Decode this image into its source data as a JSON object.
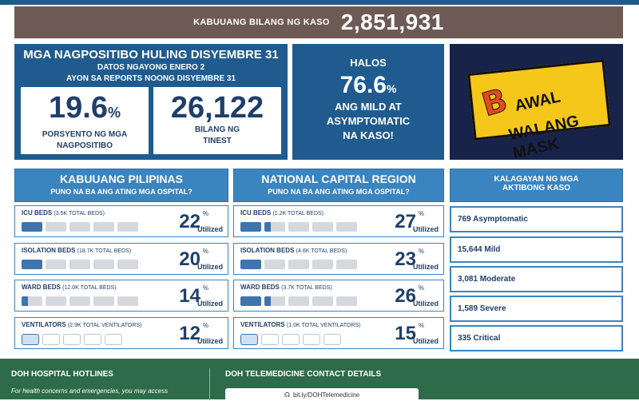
{
  "summary": {
    "total_label": "KABUUANG BILANG NG KASO",
    "total_value": "2,851,931"
  },
  "positivity": {
    "title": "MGA NAGPOSITIBO HULING DISYEMBRE 31",
    "sub1": "DATOS NGAYONG ENERO 2",
    "sub2": "AYON SA REPORTS NOONG DISYEMBRE 31",
    "rate_value": "19.6",
    "rate_unit": "%",
    "rate_caption1": "PORSYENTO NG MGA",
    "rate_caption2": "NAGPOSITIBO",
    "tested_value": "26,122",
    "tested_caption1": "BILANG NG",
    "tested_caption2": "TINEST"
  },
  "mild": {
    "line1": "HALOS",
    "value": "76.6",
    "unit": "%",
    "line2": "ANG MILD AT",
    "line3": "ASYMPTOMATIC",
    "line4": "NA KASO!"
  },
  "mask_banner": {
    "letter": "B",
    "line1": "AWAL",
    "line2": "WALANG MASK"
  },
  "philippines": {
    "title": "KABUUANG PILIPINAS",
    "subtitle": "PUNO NA BA ANG ATING MGA OSPITAL?",
    "beds": [
      {
        "label": "ICU BEDS",
        "note": "(3.5K TOTAL BEDS)",
        "value": "22",
        "unit": "%",
        "utilized": "Utilized",
        "utilization": 22
      },
      {
        "label": "ISOLATION BEDS",
        "note": "(18.7K TOTAL BEDS)",
        "value": "20",
        "unit": "%",
        "utilized": "Utilized",
        "utilization": 20
      },
      {
        "label": "WARD BEDS",
        "note": "(12.0K TOTAL BEDS)",
        "value": "14",
        "unit": "%",
        "utilized": "Utilized",
        "utilization": 14
      },
      {
        "label": "VENTILATORS",
        "note": "(2.9K TOTAL VENTILATORS)",
        "value": "12",
        "unit": "%",
        "utilized": "Utilized",
        "utilization": 12
      }
    ]
  },
  "ncr": {
    "title": "NATIONAL CAPITAL REGION",
    "subtitle": "PUNO NA BA ANG ATING MGA OSPITAL?",
    "beds": [
      {
        "label": "ICU BEDS",
        "note": "(1.2K TOTAL BEDS)",
        "value": "27",
        "unit": "%",
        "utilized": "Utilized",
        "utilization": 27
      },
      {
        "label": "ISOLATION BEDS",
        "note": "(4.6K TOTAL BEDS)",
        "value": "23",
        "unit": "%",
        "utilized": "Utilized",
        "utilization": 23
      },
      {
        "label": "WARD BEDS",
        "note": "(3.7K TOTAL BEDS)",
        "value": "26",
        "unit": "%",
        "utilized": "Utilized",
        "utilization": 26
      },
      {
        "label": "VENTILATORS",
        "note": "(1.0K TOTAL VENTILATORS)",
        "value": "15",
        "unit": "%",
        "utilized": "Utilized",
        "utilization": 15
      }
    ]
  },
  "active": {
    "title1": "KALAGAYAN NG MGA",
    "title2": "AKTIBONG KASO",
    "items": [
      "769 Asymptomatic",
      "15,644 Mild",
      "3,081 Moderate",
      "1,589 Severe",
      "335 Critical"
    ]
  },
  "footer": {
    "hotlines_title": "DOH HOSPITAL HOTLINES",
    "hotlines_text": "For health concerns and emergencies, you may access",
    "telemed_title": "DOH TELEMEDICINE CONTACT DETAILS",
    "telemed_link": "bit.ly/DOHTelemedicine"
  },
  "colors": {
    "panel": "#1f5b8e",
    "header": "#3a84c0",
    "total_bar": "#6e5a55",
    "footer": "#2d6b4a",
    "bar_fill": "#3f74ad"
  }
}
